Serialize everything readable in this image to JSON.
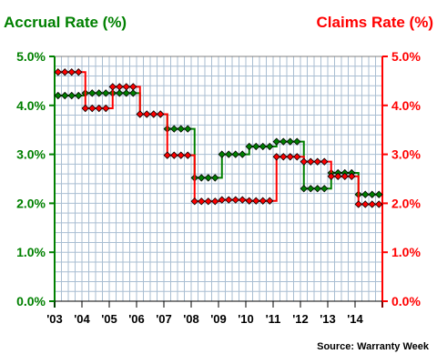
{
  "chart_data": {
    "type": "line",
    "left_title": "Accrual Rate (%)",
    "right_title": "Claims Rate (%)",
    "x_tick_labels": [
      "'03",
      "'04",
      "'05",
      "'06",
      "'07",
      "'08",
      "'09",
      "'10",
      "'11",
      "'12",
      "'13",
      "'14"
    ],
    "y_ticks_left": [
      "0.0%",
      "1.0%",
      "2.0%",
      "3.0%",
      "4.0%",
      "5.0%"
    ],
    "y_ticks_right": [
      "0.0%",
      "1.0%",
      "2.0%",
      "3.0%",
      "4.0%",
      "5.0%"
    ],
    "ylim": [
      0,
      5
    ],
    "grid": true,
    "source": "Source: Warranty Week",
    "colors": {
      "accrual": "#008000",
      "claims": "#ff0000",
      "grid": "#a9bed2",
      "border": "#808080"
    },
    "quarters": [
      "2003 Q1",
      "2003 Q2",
      "2003 Q3",
      "2003 Q4",
      "2004 Q1",
      "2004 Q2",
      "2004 Q3",
      "2004 Q4",
      "2005 Q1",
      "2005 Q2",
      "2005 Q3",
      "2005 Q4",
      "2006 Q1",
      "2006 Q2",
      "2006 Q3",
      "2006 Q4",
      "2007 Q1",
      "2007 Q2",
      "2007 Q3",
      "2007 Q4",
      "2008 Q1",
      "2008 Q2",
      "2008 Q3",
      "2008 Q4",
      "2009 Q1",
      "2009 Q2",
      "2009 Q3",
      "2009 Q4",
      "2010 Q1",
      "2010 Q2",
      "2010 Q3",
      "2010 Q4",
      "2011 Q1",
      "2011 Q2",
      "2011 Q3",
      "2011 Q4",
      "2012 Q1",
      "2012 Q2",
      "2012 Q3",
      "2012 Q4",
      "2013 Q1",
      "2013 Q2",
      "2013 Q3",
      "2013 Q4",
      "2014 Q1",
      "2014 Q2",
      "2014 Q3",
      "2014 Q4"
    ],
    "series": [
      {
        "key": "accrual",
        "axis": "left",
        "values": [
          4.2,
          4.2,
          4.2,
          4.2,
          4.25,
          4.25,
          4.25,
          4.25,
          4.25,
          4.25,
          4.25,
          4.25,
          3.82,
          3.82,
          3.82,
          3.82,
          3.52,
          3.52,
          3.52,
          3.52,
          2.52,
          2.52,
          2.52,
          2.52,
          3.0,
          3.0,
          3.0,
          3.0,
          3.16,
          3.16,
          3.16,
          3.16,
          3.26,
          3.26,
          3.26,
          3.26,
          2.3,
          2.3,
          2.3,
          2.3,
          2.62,
          2.62,
          2.62,
          2.62,
          2.18,
          2.18,
          2.18,
          2.18
        ]
      },
      {
        "key": "claims",
        "axis": "right",
        "values": [
          4.68,
          4.68,
          4.68,
          4.68,
          3.94,
          3.94,
          3.94,
          3.94,
          4.38,
          4.38,
          4.38,
          4.38,
          3.82,
          3.82,
          3.82,
          3.82,
          2.98,
          2.98,
          2.98,
          2.98,
          2.04,
          2.04,
          2.04,
          2.04,
          2.07,
          2.07,
          2.07,
          2.07,
          2.05,
          2.05,
          2.05,
          2.05,
          2.95,
          2.95,
          2.95,
          2.95,
          2.85,
          2.85,
          2.85,
          2.85,
          2.55,
          2.55,
          2.55,
          2.55,
          1.98,
          1.98,
          1.98,
          1.98
        ]
      }
    ]
  }
}
